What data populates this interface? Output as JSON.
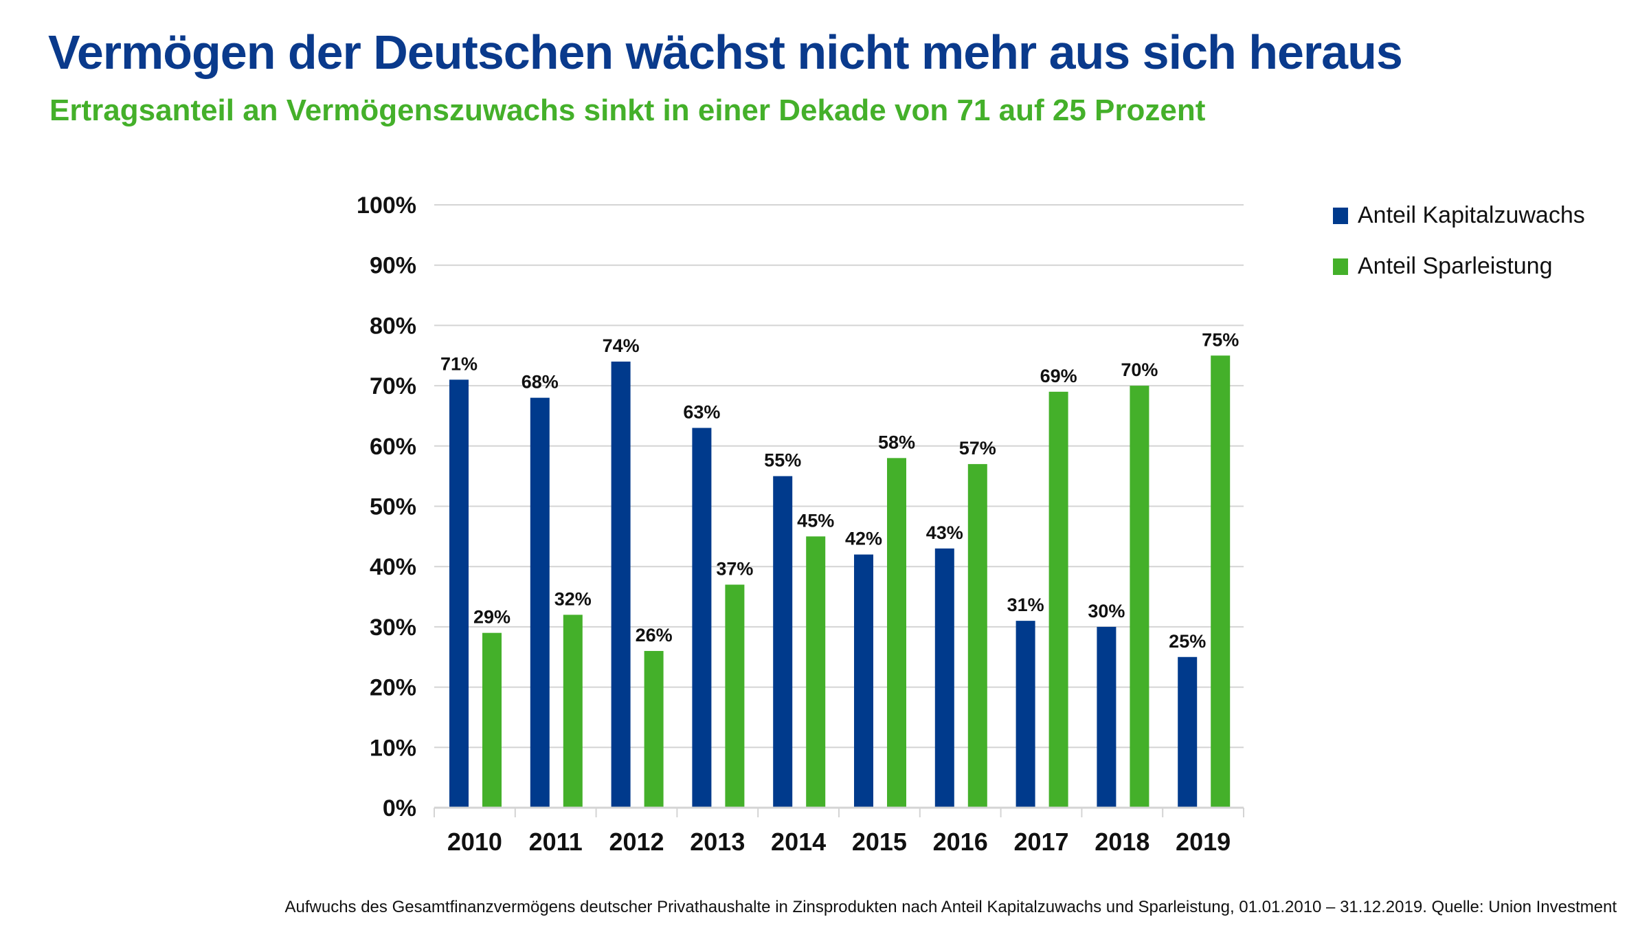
{
  "title": "Vermögen der Deutschen wächst nicht mehr aus sich heraus",
  "subtitle": "Ertragsanteil an Vermögenszuwachs sinkt in einer Dekade von 71 auf 25 Prozent",
  "footnote": "Aufwuchs des Gesamtfinanzvermögens deutscher Privathaushalte in Zinsprodukten nach Anteil Kapitalzuwachs und Sparleistung, 01.01.2010 – 31.12.2019. Quelle: Union Investment",
  "chart_data": {
    "type": "bar",
    "categories": [
      "2010",
      "2011",
      "2012",
      "2013",
      "2014",
      "2015",
      "2016",
      "2017",
      "2018",
      "2019"
    ],
    "series": [
      {
        "name": "Anteil Kapitalzuwachs",
        "color": "#003a8c",
        "values": [
          71,
          68,
          74,
          63,
          55,
          42,
          43,
          31,
          30,
          25
        ]
      },
      {
        "name": "Anteil Sparleistung",
        "color": "#44b02a",
        "values": [
          29,
          32,
          26,
          37,
          45,
          58,
          57,
          69,
          70,
          75
        ]
      }
    ],
    "ylim": [
      0,
      100
    ],
    "yticks": [
      "0%",
      "10%",
      "20%",
      "30%",
      "40%",
      "50%",
      "60%",
      "70%",
      "80%",
      "90%",
      "100%"
    ],
    "value_format": "%",
    "grid": true,
    "legend_position": "top-right",
    "data_labels": true
  }
}
